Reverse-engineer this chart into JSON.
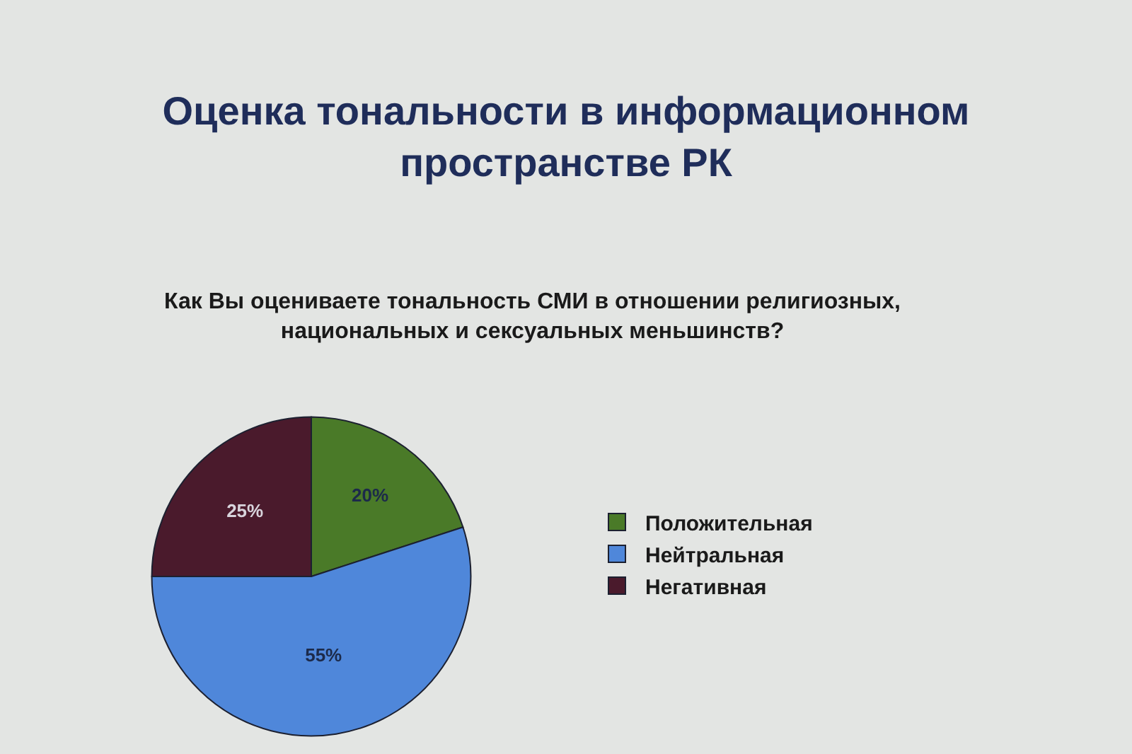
{
  "chart_data": {
    "type": "pie",
    "title": "Оценка тональности в информационном\nпространстве РК",
    "subtitle": "Как Вы оцениваете тональность СМИ в отношении религиозных,\nнациональных и сексуальных меньшинств?",
    "categories": [
      "Положительная",
      "Нейтральная",
      "Негативная"
    ],
    "values": [
      20,
      55,
      25
    ],
    "value_labels": [
      "20%",
      "55%",
      "25%"
    ],
    "colors": [
      "#4a7a28",
      "#4f87da",
      "#4a1a2c"
    ],
    "legend": "right"
  }
}
